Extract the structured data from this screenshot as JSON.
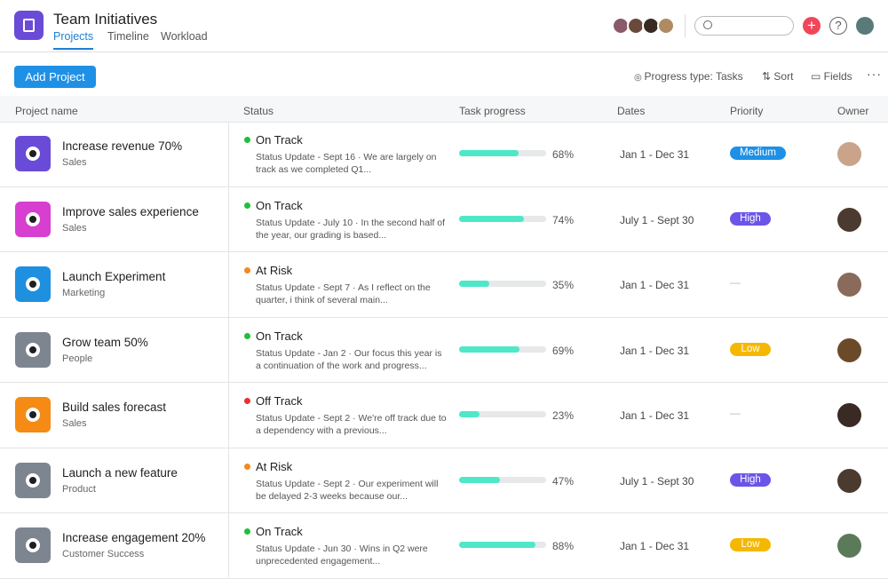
{
  "header": {
    "title": "Team Initiatives",
    "tabs": [
      "Projects",
      "Timeline",
      "Workload"
    ],
    "active_tab": 0
  },
  "toolbar": {
    "add_button": "Add Project",
    "progress_type": "Progress type: Tasks",
    "sort": "Sort",
    "fields": "Fields"
  },
  "table": {
    "columns": [
      "Project name",
      "Status",
      "Task progress",
      "Dates",
      "Priority",
      "Owner"
    ],
    "rows": [
      {
        "name": "Increase revenue 70%",
        "team": "Sales",
        "icon_color": "#6a4bd8",
        "status": "On Track",
        "status_color": "#1fbf3a",
        "update": "Status Update - Sept 16 · We are largely on track as we completed Q1...",
        "progress": {
          "value": 68,
          "label": "68%"
        },
        "dates": "Jan 1 - Dec 31",
        "priority": {
          "label": "Medium",
          "color": "#1e90e6"
        },
        "owner_color": "#c9a38a"
      },
      {
        "name": "Improve sales experience",
        "team": "Sales",
        "icon_color": "#d63fd0",
        "status": "On Track",
        "status_color": "#1fbf3a",
        "update": "Status Update - July 10 · In the second half of the year, our grading is based...",
        "progress": {
          "value": 74,
          "label": "74%"
        },
        "dates": "July 1 - Sept 30",
        "priority": {
          "label": "High",
          "color": "#6b55e8"
        },
        "owner_color": "#4a3a30"
      },
      {
        "name": "Launch Experiment",
        "team": "Marketing",
        "icon_color": "#1f8fe0",
        "status": "At Risk",
        "status_color": "#f28a1d",
        "update": "Status Update - Sept 7 · As I reflect on the quarter, i think of several main...",
        "progress": {
          "value": 35,
          "label": "35%"
        },
        "dates": "Jan 1 - Dec 31",
        "priority": {
          "label": "—",
          "color": null
        },
        "owner_color": "#8a6a5a"
      },
      {
        "name": "Grow team 50%",
        "team": "People",
        "icon_color": "#7d8590",
        "status": "On Track",
        "status_color": "#1fbf3a",
        "update": "Status Update - Jan 2 · Our focus this year is a continuation of the work and progress...",
        "progress": {
          "value": 69,
          "label": "69%"
        },
        "dates": "Jan 1 - Dec 31",
        "priority": {
          "label": "Low",
          "color": "#f5b800"
        },
        "owner_color": "#6b4a2a"
      },
      {
        "name": "Build sales forecast",
        "team": "Sales",
        "icon_color": "#f58a14",
        "status": "Off Track",
        "status_color": "#e8322e",
        "update": "Status Update - Sept 2 · We're off track due to a dependency with a previous...",
        "progress": {
          "value": 23,
          "label": "23%"
        },
        "dates": "Jan 1 - Dec 31",
        "priority": {
          "label": "—",
          "color": null
        },
        "owner_color": "#3a2a24"
      },
      {
        "name": "Launch a new feature",
        "team": "Product",
        "icon_color": "#7d8590",
        "status": "At Risk",
        "status_color": "#f28a1d",
        "update": "Status Update - Sept 2 · Our experiment will be delayed 2-3 weeks because our...",
        "progress": {
          "value": 47,
          "label": "47%"
        },
        "dates": "July 1 - Sept 30",
        "priority": {
          "label": "High",
          "color": "#6b55e8"
        },
        "owner_color": "#4a3a30"
      },
      {
        "name": "Increase engagement 20%",
        "team": "Customer Success",
        "icon_color": "#7d8590",
        "status": "On Track",
        "status_color": "#1fbf3a",
        "update": "Status Update - Jun 30 · Wins in Q2 were unprecedented engagement...",
        "progress": {
          "value": 88,
          "label": "88%"
        },
        "dates": "Jan 1 - Dec 31",
        "priority": {
          "label": "Low",
          "color": "#f5b800"
        },
        "owner_color": "#5a7a5a"
      }
    ]
  }
}
